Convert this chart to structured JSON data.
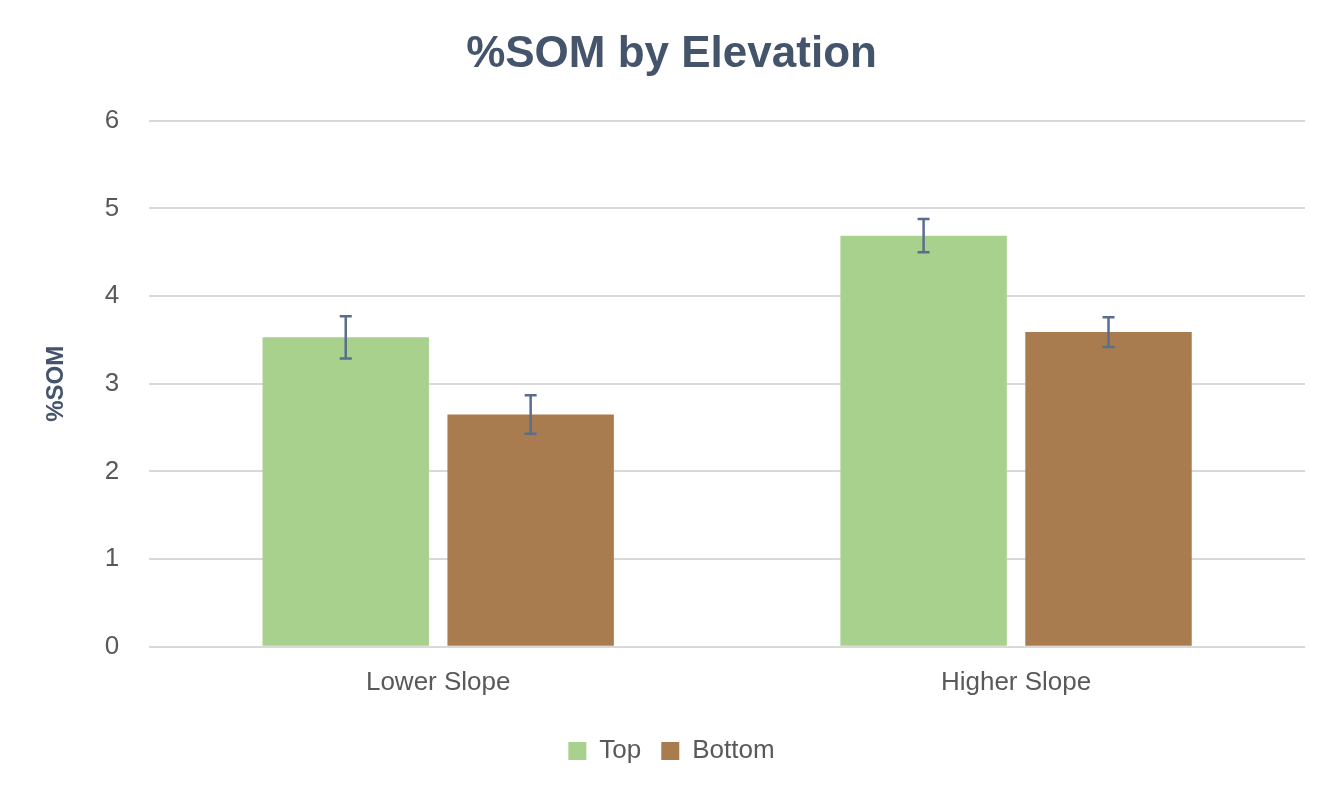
{
  "chart_data": {
    "type": "bar",
    "title": "%SOM by Elevation",
    "ylabel": "%SOM",
    "categories": [
      "Lower Slope",
      "Higher Slope"
    ],
    "series": [
      {
        "name": "Top",
        "color": "#a9d18e",
        "values": [
          3.53,
          4.69
        ],
        "errors": [
          0.24,
          0.19
        ]
      },
      {
        "name": "Bottom",
        "color": "#a97c50",
        "values": [
          2.65,
          3.59
        ],
        "errors": [
          0.22,
          0.17
        ]
      }
    ],
    "ylim": [
      0,
      6
    ],
    "yticks": [
      0,
      1,
      2,
      3,
      4,
      5,
      6
    ],
    "grid": "y",
    "legend": "bottom"
  }
}
